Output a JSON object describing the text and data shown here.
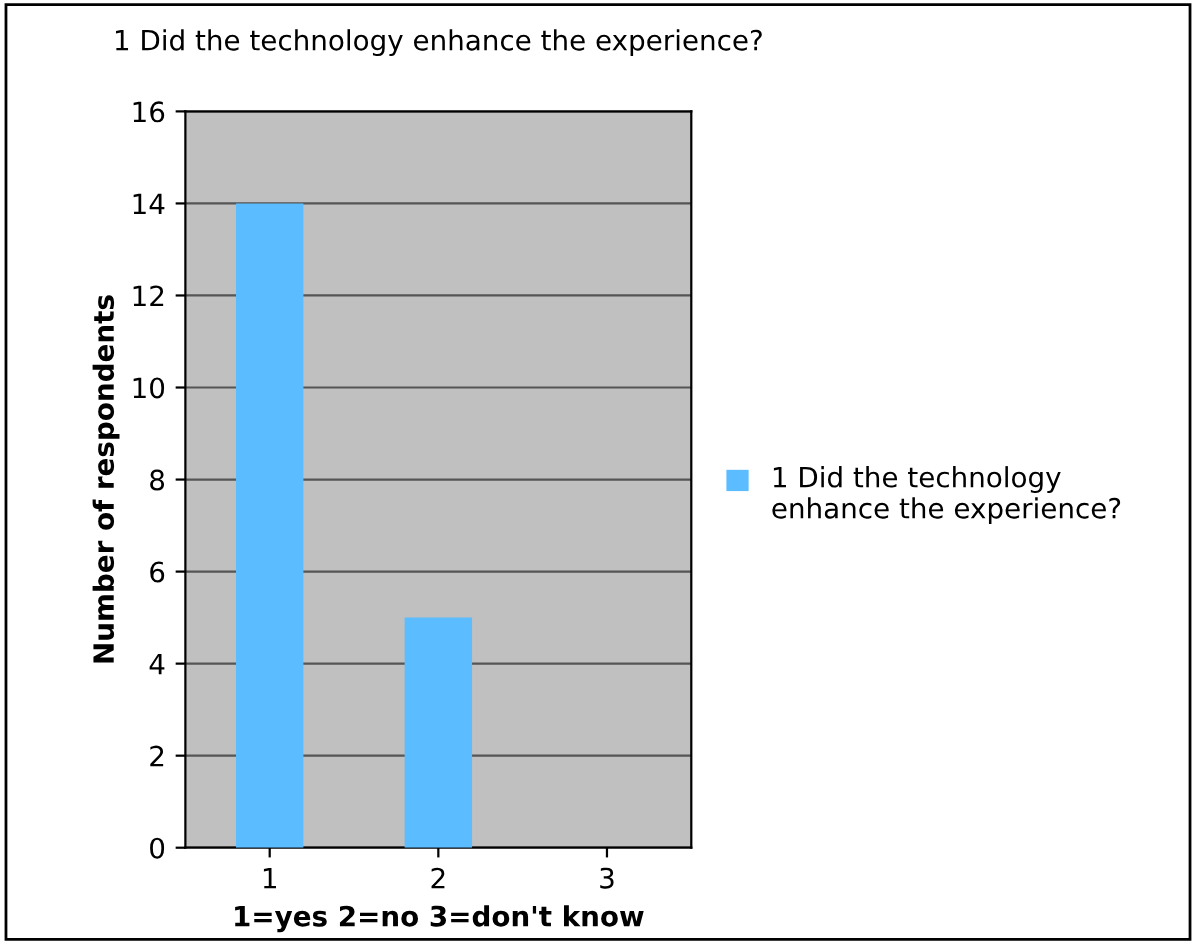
{
  "chart_data": {
    "type": "bar",
    "title": "1 Did the technology enhance the experience?",
    "categories": [
      "1",
      "2",
      "3"
    ],
    "series": [
      {
        "name": "1 Did the technology enhance the experience?",
        "color": "#5bbcff",
        "values": [
          14,
          5,
          0
        ]
      }
    ],
    "xlabel": "1=yes 2=no 3=don't know",
    "ylabel": "Number of respondents",
    "ylim": [
      0,
      16
    ],
    "yticks": [
      0,
      2,
      4,
      6,
      8,
      10,
      12,
      14,
      16
    ],
    "grid": "y",
    "legend": "right"
  }
}
